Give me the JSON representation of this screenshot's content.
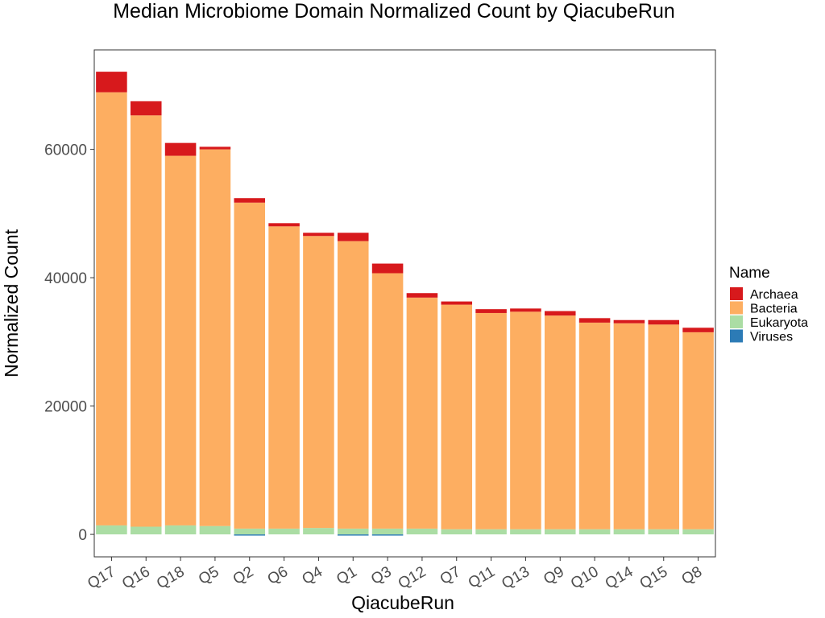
{
  "chart_data": {
    "type": "bar",
    "stacked": true,
    "title": "Median Microbiome Domain Normalized Count by QiacubeRun",
    "xlabel": "QiacubeRun",
    "ylabel": "Normalized Count",
    "ylim": [
      -3500,
      75500
    ],
    "yticks": [
      0,
      20000,
      40000,
      60000
    ],
    "ytick_labels": [
      "0",
      "20000",
      "40000",
      "60000"
    ],
    "grid": false,
    "legend_position": "right",
    "legend_title": "Name",
    "categories": [
      "Q17",
      "Q16",
      "Q18",
      "Q5",
      "Q2",
      "Q6",
      "Q4",
      "Q1",
      "Q3",
      "Q12",
      "Q7",
      "Q11",
      "Q13",
      "Q9",
      "Q10",
      "Q14",
      "Q15",
      "Q8"
    ],
    "series": [
      {
        "name": "Viruses",
        "color": "#2c7bb6",
        "values": [
          0,
          0,
          0,
          0,
          -150,
          0,
          0,
          -150,
          -150,
          0,
          0,
          0,
          0,
          0,
          0,
          0,
          0,
          0
        ]
      },
      {
        "name": "Eukaryota",
        "color": "#abdda4",
        "values": [
          1400,
          1200,
          1400,
          1300,
          900,
          900,
          1000,
          900,
          900,
          900,
          800,
          800,
          800,
          800,
          800,
          800,
          800,
          800
        ]
      },
      {
        "name": "Bacteria",
        "color": "#fdae61",
        "values": [
          67500,
          64100,
          57600,
          58700,
          50800,
          47100,
          45500,
          44800,
          39800,
          36000,
          35000,
          33700,
          33900,
          33300,
          32200,
          32100,
          31900,
          30700
        ]
      },
      {
        "name": "Archaea",
        "color": "#d7191c",
        "values": [
          3200,
          2200,
          2000,
          400,
          700,
          500,
          500,
          1300,
          1500,
          700,
          500,
          600,
          500,
          700,
          700,
          500,
          700,
          700
        ]
      }
    ],
    "legend_order": [
      "Archaea",
      "Bacteria",
      "Eukaryota",
      "Viruses"
    ]
  }
}
